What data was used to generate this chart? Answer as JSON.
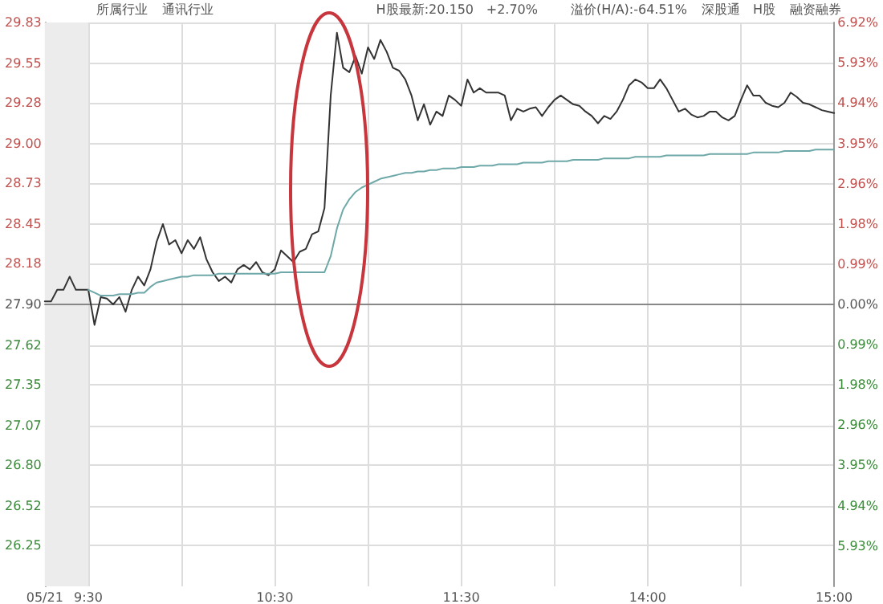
{
  "chart_data": {
    "type": "line",
    "annotations": [
      "所属行业",
      "通讯行业",
      "H股最新:20.150",
      "+2.70%",
      "溢价(H/A):-64.51%",
      "深股通",
      "H股",
      "融资融券"
    ],
    "categories": [
      "05/21",
      null,
      null,
      null,
      null,
      null,
      null,
      "9:30",
      null,
      null,
      null,
      null,
      null,
      null,
      null,
      null,
      null,
      null,
      null,
      null,
      null,
      null,
      null,
      null,
      null,
      null,
      null,
      null,
      null,
      null,
      null,
      null,
      null,
      null,
      null,
      null,
      null,
      "10:30",
      null,
      null,
      null,
      null,
      null,
      null,
      null,
      null,
      null,
      null,
      null,
      null,
      null,
      null,
      null,
      null,
      null,
      null,
      null,
      null,
      null,
      null,
      null,
      null,
      null,
      null,
      null,
      null,
      null,
      "11:30",
      null,
      null,
      null,
      null,
      null,
      null,
      null,
      null,
      null,
      null,
      null,
      null,
      null,
      null,
      null,
      null,
      null,
      null,
      null,
      null,
      null,
      null,
      null,
      null,
      null,
      null,
      null,
      null,
      null,
      "14:00",
      null,
      null,
      null,
      null,
      null,
      null,
      null,
      null,
      null,
      null,
      null,
      null,
      null,
      null,
      null,
      null,
      null,
      null,
      null,
      null,
      null,
      null,
      null,
      null,
      null,
      null,
      null,
      null,
      null,
      "15:00"
    ],
    "series": [
      {
        "color": "#333333",
        "values": [
          27.92,
          27.92,
          28.0,
          28.0,
          28.09,
          28.0,
          28.0,
          28.0,
          27.76,
          27.95,
          27.94,
          27.9,
          27.95,
          27.85,
          28.0,
          28.09,
          28.03,
          28.14,
          28.33,
          28.45,
          28.31,
          28.34,
          28.25,
          28.34,
          28.28,
          28.36,
          28.21,
          28.12,
          28.06,
          28.09,
          28.05,
          28.14,
          28.17,
          28.14,
          28.19,
          28.12,
          28.1,
          28.14,
          28.27,
          28.23,
          28.19,
          28.26,
          28.28,
          28.38,
          28.4,
          28.56,
          29.33,
          29.76,
          29.52,
          29.49,
          29.6,
          29.48,
          29.66,
          29.58,
          29.71,
          29.63,
          29.52,
          29.5,
          29.44,
          29.33,
          29.16,
          29.27,
          29.13,
          29.22,
          29.19,
          29.33,
          29.3,
          29.26,
          29.44,
          29.35,
          29.38,
          29.35,
          29.35,
          29.35,
          29.33,
          29.16,
          29.24,
          29.22,
          29.24,
          29.25,
          29.19,
          29.25,
          29.3,
          29.33,
          29.3,
          29.27,
          29.26,
          29.22,
          29.19,
          29.14,
          29.19,
          29.17,
          29.22,
          29.3,
          29.4,
          29.44,
          29.42,
          29.38,
          29.38,
          29.44,
          29.38,
          29.3,
          29.22,
          29.24,
          29.2,
          29.18,
          29.19,
          29.22,
          29.22,
          29.18,
          29.16,
          29.19,
          29.3,
          29.4,
          29.33,
          29.33,
          29.28,
          29.26,
          29.25,
          29.28,
          29.35,
          29.32,
          29.28,
          29.27,
          29.25,
          29.23,
          29.22,
          29.21
        ]
      },
      {
        "color": "#6fa8a8",
        "values": [
          null,
          null,
          null,
          null,
          null,
          null,
          null,
          28.0,
          27.98,
          27.96,
          27.96,
          27.96,
          27.97,
          27.97,
          27.97,
          27.98,
          27.98,
          28.02,
          28.05,
          28.06,
          28.07,
          28.08,
          28.09,
          28.09,
          28.1,
          28.1,
          28.1,
          28.1,
          28.11,
          28.11,
          28.11,
          28.11,
          28.11,
          28.11,
          28.11,
          28.11,
          28.11,
          28.11,
          28.12,
          28.12,
          28.12,
          28.12,
          28.12,
          28.12,
          28.12,
          28.12,
          28.23,
          28.42,
          28.55,
          28.62,
          28.67,
          28.7,
          28.72,
          28.74,
          28.76,
          28.77,
          28.78,
          28.79,
          28.8,
          28.8,
          28.81,
          28.81,
          28.82,
          28.82,
          28.83,
          28.83,
          28.83,
          28.84,
          28.84,
          28.84,
          28.85,
          28.85,
          28.85,
          28.86,
          28.86,
          28.86,
          28.86,
          28.87,
          28.87,
          28.87,
          28.87,
          28.88,
          28.88,
          28.88,
          28.88,
          28.89,
          28.89,
          28.89,
          28.89,
          28.89,
          28.9,
          28.9,
          28.9,
          28.9,
          28.9,
          28.91,
          28.91,
          28.91,
          28.91,
          28.91,
          28.92,
          28.92,
          28.92,
          28.92,
          28.92,
          28.92,
          28.92,
          28.93,
          28.93,
          28.93,
          28.93,
          28.93,
          28.93,
          28.93,
          28.94,
          28.94,
          28.94,
          28.94,
          28.94,
          28.95,
          28.95,
          28.95,
          28.95,
          28.95,
          28.96,
          28.96,
          28.96,
          28.96
        ]
      }
    ],
    "ylim": [
      25.97,
      29.83
    ],
    "yticks": [
      26.25,
      26.52,
      {
        "value": 26.8,
        "label": "26.80"
      },
      27.07,
      27.35,
      27.62,
      {
        "value": 27.9,
        "label": "27.90"
      },
      28.18,
      28.45,
      28.73,
      {
        "value": 29.0,
        "label": "29.00"
      },
      29.28,
      29.55,
      29.83
    ],
    "y2lim": [
      -6.92,
      6.92
    ],
    "y2ticks": [
      {
        "value": -5.93,
        "label": "5.93%"
      },
      {
        "value": -4.94,
        "label": "4.94%"
      },
      {
        "value": -3.95,
        "label": "3.95%"
      },
      {
        "value": -2.96,
        "label": "2.96%"
      },
      {
        "value": -1.98,
        "label": "1.98%"
      },
      {
        "value": -0.99,
        "label": "0.99%"
      },
      {
        "value": 0,
        "label": "0.00%"
      },
      {
        "value": 0.99,
        "label": "0.99%"
      },
      {
        "value": 1.98,
        "label": "1.98%"
      },
      {
        "value": 2.96,
        "label": "2.96%"
      },
      {
        "value": 3.95,
        "label": "3.95%"
      },
      {
        "value": 4.94,
        "label": "4.94%"
      },
      {
        "value": 5.93,
        "label": "5.93%"
      },
      {
        "value": 6.92,
        "label": "6.92%"
      }
    ],
    "ref_lines": [
      {
        "axis": "y",
        "value": 27.9,
        "color": "#888888"
      }
    ],
    "bands": [
      {
        "axis": "x",
        "from": "05/21",
        "to": "9:30",
        "color": "#ececec"
      }
    ],
    "grid": true,
    "marker": "none",
    "line_style": "solid"
  }
}
